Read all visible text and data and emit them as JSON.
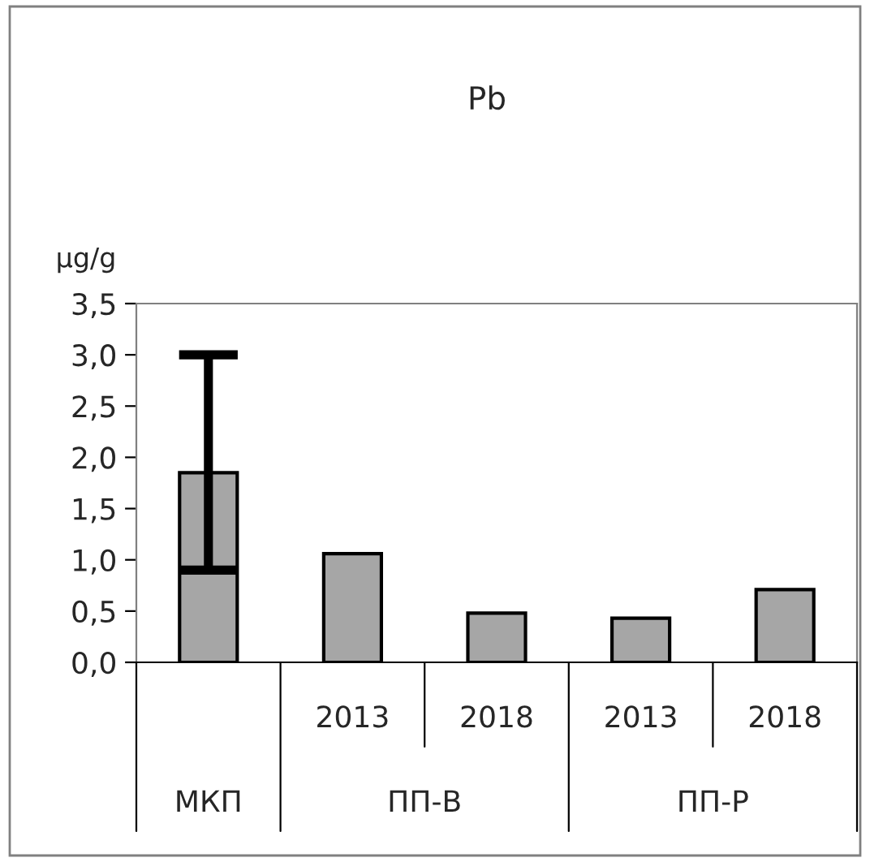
{
  "chart_data": {
    "type": "bar",
    "title": "Pb",
    "ylabel": "μg/g",
    "categories": [
      null,
      "2013",
      "2018",
      "2013",
      "2018"
    ],
    "annotations": [
      "МКП",
      "ПП-В",
      "ПП-Р"
    ],
    "values": [
      1.85,
      1.06,
      0.48,
      0.43,
      0.71
    ],
    "errors": [
      [
        0.9,
        3.0
      ],
      null,
      null,
      null,
      null
    ],
    "color": "#a6a6a6",
    "ylim": [
      0,
      3.5
    ],
    "yticks": [
      {
        "value": 0,
        "label": "0,0"
      },
      {
        "value": 0.5,
        "label": "0,5"
      },
      {
        "value": 1,
        "label": "1,0"
      },
      {
        "value": 1.5,
        "label": "1,5"
      },
      {
        "value": 2,
        "label": "2,0"
      },
      {
        "value": 2.5,
        "label": "2,5"
      },
      {
        "value": 3,
        "label": "3,0"
      },
      {
        "value": 3.5,
        "label": "3,5"
      }
    ],
    "grid": false
  }
}
